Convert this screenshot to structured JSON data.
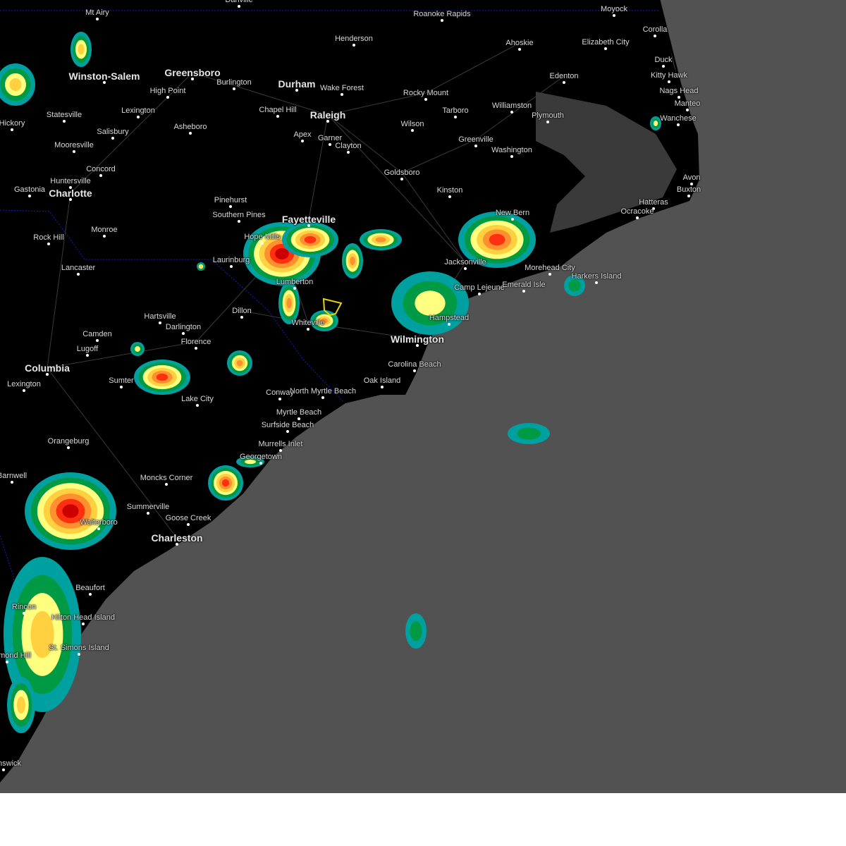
{
  "map": {
    "land_color": "#000000",
    "ocean_color": "#525252",
    "state_border_color": "#1a1acc",
    "warning_polygon_color": "#e8d400",
    "radar_colors": [
      "#00a0a0",
      "#009944",
      "#ffff80",
      "#ffd040",
      "#ff9030",
      "#ff3010",
      "#cc0000"
    ],
    "cities": [
      {
        "name": "Mt Airy"
      },
      {
        "name": "Danville"
      },
      {
        "name": "Roanoke Rapids"
      },
      {
        "name": "Moyock"
      },
      {
        "name": "Corolla"
      },
      {
        "name": "Henderson"
      },
      {
        "name": "Ahoskie"
      },
      {
        "name": "Elizabeth City"
      },
      {
        "name": "Duck"
      },
      {
        "name": "Winston-Salem"
      },
      {
        "name": "Greensboro"
      },
      {
        "name": "Burlington"
      },
      {
        "name": "Durham"
      },
      {
        "name": "Wake Forest"
      },
      {
        "name": "Edenton"
      },
      {
        "name": "Kitty Hawk"
      },
      {
        "name": "Nags Head"
      },
      {
        "name": "High Point"
      },
      {
        "name": "Chapel Hill"
      },
      {
        "name": "Raleigh"
      },
      {
        "name": "Rocky Mount"
      },
      {
        "name": "Tarboro"
      },
      {
        "name": "Williamston"
      },
      {
        "name": "Plymouth"
      },
      {
        "name": "Manteo"
      },
      {
        "name": "Wanchese"
      },
      {
        "name": "Statesville"
      },
      {
        "name": "Lexington"
      },
      {
        "name": "Hickory"
      },
      {
        "name": "Salisbury"
      },
      {
        "name": "Asheboro"
      },
      {
        "name": "Apex"
      },
      {
        "name": "Garner"
      },
      {
        "name": "Wilson"
      },
      {
        "name": "Clayton"
      },
      {
        "name": "Greenville"
      },
      {
        "name": "Washington"
      },
      {
        "name": "Mooresville"
      },
      {
        "name": "Concord"
      },
      {
        "name": "Goldsboro"
      },
      {
        "name": "Avon"
      },
      {
        "name": "Huntersville"
      },
      {
        "name": "Gastonia"
      },
      {
        "name": "Charlotte"
      },
      {
        "name": "Kinston"
      },
      {
        "name": "Buxton"
      },
      {
        "name": "Pinehurst"
      },
      {
        "name": "Hatteras"
      },
      {
        "name": "Southern Pines"
      },
      {
        "name": "New Bern"
      },
      {
        "name": "Ocracoke"
      },
      {
        "name": "Fayetteville"
      },
      {
        "name": "Monroe"
      },
      {
        "name": "Rock Hill"
      },
      {
        "name": "Hope Mills"
      },
      {
        "name": "Laurinburg"
      },
      {
        "name": "Jacksonville"
      },
      {
        "name": "Lancaster"
      },
      {
        "name": "Morehead City"
      },
      {
        "name": "Harkers Island"
      },
      {
        "name": "Lumberton"
      },
      {
        "name": "Camp Lejeune"
      },
      {
        "name": "Emerald Isle"
      },
      {
        "name": "Dillon"
      },
      {
        "name": "Hartsville"
      },
      {
        "name": "Hampstead"
      },
      {
        "name": "Darlington"
      },
      {
        "name": "Whiteville"
      },
      {
        "name": "Camden"
      },
      {
        "name": "Wilmington"
      },
      {
        "name": "Florence"
      },
      {
        "name": "Lugoff"
      },
      {
        "name": "Carolina Beach"
      },
      {
        "name": "Columbia"
      },
      {
        "name": "Sumter"
      },
      {
        "name": "Lexington"
      },
      {
        "name": "North Myrtle Beach"
      },
      {
        "name": "Oak Island"
      },
      {
        "name": "Conway"
      },
      {
        "name": "Lake City"
      },
      {
        "name": "Myrtle Beach"
      },
      {
        "name": "Surfside Beach"
      },
      {
        "name": "Orangeburg"
      },
      {
        "name": "Murrells Inlet"
      },
      {
        "name": "Georgetown"
      },
      {
        "name": "Barnwell"
      },
      {
        "name": "Moncks Corner"
      },
      {
        "name": "Summerville"
      },
      {
        "name": "Walterboro"
      },
      {
        "name": "Goose Creek"
      },
      {
        "name": "Charleston"
      },
      {
        "name": "Beaufort"
      },
      {
        "name": "Rincon"
      },
      {
        "name": "Hilton Head Island"
      },
      {
        "name": "Richmond Hill"
      },
      {
        "name": "St. Simons Island"
      },
      {
        "name": "Brunswick"
      }
    ]
  }
}
